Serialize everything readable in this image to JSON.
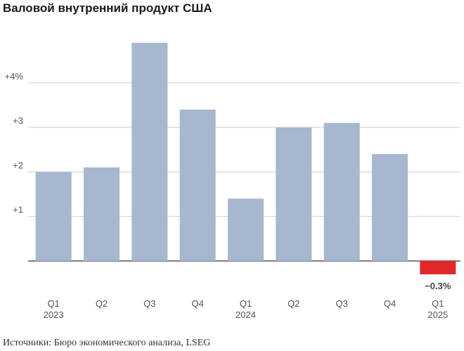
{
  "title": "Валовой внутренний продукт США",
  "source": "Источники: Бюро экономического анализа, LSEG",
  "chart_data": {
    "type": "bar",
    "title": "Валовой внутренний продукт США",
    "categories": [
      {
        "quarter": "Q1",
        "year": "2023"
      },
      {
        "quarter": "Q2",
        "year": ""
      },
      {
        "quarter": "Q3",
        "year": ""
      },
      {
        "quarter": "Q4",
        "year": ""
      },
      {
        "quarter": "Q1",
        "year": "2024"
      },
      {
        "quarter": "Q2",
        "year": ""
      },
      {
        "quarter": "Q3",
        "year": ""
      },
      {
        "quarter": "Q4",
        "year": ""
      },
      {
        "quarter": "Q1",
        "year": "2025"
      }
    ],
    "values": [
      2.0,
      2.1,
      4.9,
      3.4,
      1.4,
      3.0,
      3.1,
      2.4,
      -0.3
    ],
    "data_labels": [
      {
        "index": 8,
        "text": "−0.3%"
      }
    ],
    "yticks": [
      {
        "value": 1,
        "label": "+1"
      },
      {
        "value": 2,
        "label": "+2"
      },
      {
        "value": 3,
        "label": "+3"
      },
      {
        "value": 4,
        "label": "+4%"
      }
    ],
    "ylim": [
      -0.5,
      5.0
    ],
    "grid": true,
    "colors": {
      "positive": "#a6b7cf",
      "negative": "#e0272a",
      "grid": "#cfcfcf",
      "baseline": "#333333"
    }
  }
}
